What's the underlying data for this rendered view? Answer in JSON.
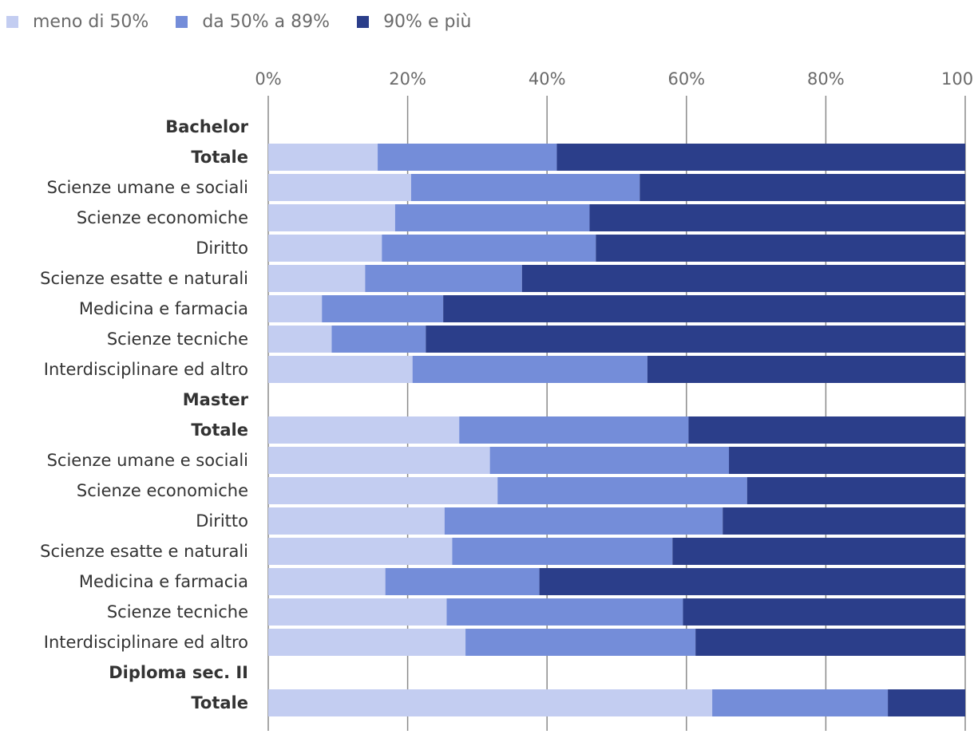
{
  "chart_data": {
    "type": "bar",
    "orientation": "horizontal",
    "stacked": true,
    "xlim": [
      0,
      100
    ],
    "x_ticks": [
      "0%",
      "20%",
      "40%",
      "60%",
      "80%",
      "100%"
    ],
    "grid": true,
    "legend_position": "top-left",
    "colors": [
      "#c3cdf1",
      "#748dd9",
      "#2b3e8a"
    ],
    "series": [
      {
        "name": "meno di 50%",
        "values": [
          null,
          15.7,
          20.5,
          18.2,
          16.3,
          13.9,
          7.7,
          9.1,
          20.7,
          null,
          27.4,
          31.8,
          32.9,
          25.3,
          26.4,
          16.8,
          25.6,
          28.3,
          null,
          63.7
        ]
      },
      {
        "name": "da 50% a 89%",
        "values": [
          null,
          25.7,
          32.8,
          27.9,
          30.7,
          22.5,
          17.4,
          13.5,
          33.7,
          null,
          32.9,
          34.3,
          35.8,
          39.9,
          31.6,
          22.1,
          33.9,
          33.0,
          null,
          25.2
        ]
      },
      {
        "name": "90% e più",
        "values": [
          null,
          58.6,
          46.7,
          53.9,
          53.0,
          63.6,
          74.9,
          77.4,
          45.6,
          null,
          39.7,
          33.9,
          31.3,
          34.8,
          42.0,
          61.1,
          40.5,
          38.7,
          null,
          11.1
        ]
      }
    ],
    "categories": [
      {
        "label": "Bachelor",
        "bold": true
      },
      {
        "label": "Totale",
        "bold": true
      },
      {
        "label": "Scienze umane e sociali",
        "bold": false
      },
      {
        "label": "Scienze economiche",
        "bold": false
      },
      {
        "label": "Diritto",
        "bold": false
      },
      {
        "label": "Scienze esatte e naturali",
        "bold": false
      },
      {
        "label": "Medicina e farmacia",
        "bold": false
      },
      {
        "label": "Scienze tecniche",
        "bold": false
      },
      {
        "label": "Interdisciplinare ed altro",
        "bold": false
      },
      {
        "label": "Master",
        "bold": true
      },
      {
        "label": "Totale",
        "bold": true
      },
      {
        "label": "Scienze umane e sociali",
        "bold": false
      },
      {
        "label": "Scienze economiche",
        "bold": false
      },
      {
        "label": "Diritto",
        "bold": false
      },
      {
        "label": "Scienze esatte e naturali",
        "bold": false
      },
      {
        "label": "Medicina e farmacia",
        "bold": false
      },
      {
        "label": "Scienze tecniche",
        "bold": false
      },
      {
        "label": "Interdisciplinare ed altro",
        "bold": false
      },
      {
        "label": "Diploma sec. II",
        "bold": true
      },
      {
        "label": "Totale",
        "bold": true
      }
    ]
  }
}
